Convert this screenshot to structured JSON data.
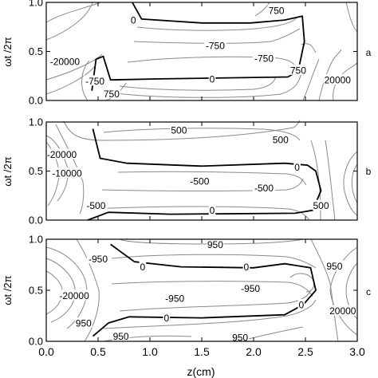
{
  "figure": {
    "xlabel": "z(cm)",
    "ylabel": "ωt /2π",
    "x_ticks": [
      "0.0",
      "0.5",
      "1.0",
      "1.5",
      "2.0",
      "2.5",
      "3.0"
    ],
    "y_ticks": [
      "0.0",
      "0.5",
      "1.0"
    ]
  },
  "chart_data": [
    {
      "type": "contour",
      "panel_label": "a",
      "xlabel": "",
      "ylabel": "ωt /2π",
      "xlim": [
        0,
        3
      ],
      "ylim": [
        0,
        1
      ],
      "grid": false,
      "levels_labeled": [
        "-20000",
        "-750",
        "0",
        "750",
        "20000"
      ],
      "contour_labels": [
        {
          "text": "0",
          "x": 0.84,
          "y": 0.82
        },
        {
          "text": "750",
          "x": 2.22,
          "y": 0.92
        },
        {
          "text": "-20000",
          "x": 0.18,
          "y": 0.4
        },
        {
          "text": "-750",
          "x": 1.63,
          "y": 0.56
        },
        {
          "text": "-750",
          "x": 2.1,
          "y": 0.43
        },
        {
          "text": "0",
          "x": 1.6,
          "y": 0.22
        },
        {
          "text": "750",
          "x": 2.43,
          "y": 0.31
        },
        {
          "text": "20000",
          "x": 2.81,
          "y": 0.21
        },
        {
          "text": "750",
          "x": 0.63,
          "y": 0.07
        },
        {
          "text": "-750",
          "x": 0.47,
          "y": 0.2
        }
      ],
      "zero_contour": [
        [
          0.83,
          1.0
        ],
        [
          0.92,
          0.83
        ],
        [
          1.5,
          0.79
        ],
        [
          1.97,
          0.79
        ],
        [
          2.3,
          0.82
        ],
        [
          2.47,
          0.86
        ],
        [
          2.49,
          0.6
        ],
        [
          2.43,
          0.3
        ],
        [
          2.33,
          0.24
        ],
        [
          1.1,
          0.22
        ],
        [
          0.62,
          0.21
        ],
        [
          0.55,
          0.45
        ],
        [
          0.48,
          0.42
        ],
        [
          0.44,
          0.1
        ]
      ]
    },
    {
      "type": "contour",
      "panel_label": "b",
      "xlabel": "",
      "ylabel": "ωt /2π",
      "xlim": [
        0,
        3
      ],
      "ylim": [
        0,
        1
      ],
      "grid": false,
      "levels_labeled": [
        "-20000",
        "-10000",
        "-500",
        "0",
        "500"
      ],
      "contour_labels": [
        {
          "text": "500",
          "x": 1.28,
          "y": 0.92
        },
        {
          "text": "500",
          "x": 2.26,
          "y": 0.82
        },
        {
          "text": "-20000",
          "x": 0.15,
          "y": 0.67
        },
        {
          "text": "-10000",
          "x": 0.2,
          "y": 0.48
        },
        {
          "text": "0",
          "x": 2.42,
          "y": 0.54
        },
        {
          "text": "-500",
          "x": 1.48,
          "y": 0.4
        },
        {
          "text": "-500",
          "x": 2.1,
          "y": 0.33
        },
        {
          "text": "-500",
          "x": 0.48,
          "y": 0.15
        },
        {
          "text": "0",
          "x": 1.6,
          "y": 0.1
        },
        {
          "text": "500",
          "x": 2.65,
          "y": 0.15
        }
      ],
      "zero_contour": [
        [
          0.45,
          0.93
        ],
        [
          0.52,
          0.63
        ],
        [
          0.78,
          0.58
        ],
        [
          1.5,
          0.55
        ],
        [
          2.3,
          0.58
        ],
        [
          2.52,
          0.56
        ],
        [
          2.6,
          0.5
        ],
        [
          2.65,
          0.3
        ],
        [
          2.57,
          0.1
        ],
        [
          2.4,
          0.07
        ],
        [
          1.2,
          0.06
        ],
        [
          0.6,
          0.08
        ],
        [
          0.4,
          0.0
        ]
      ]
    },
    {
      "type": "contour",
      "panel_label": "c",
      "xlabel": "z(cm)",
      "ylabel": "ωt /2π",
      "xlim": [
        0,
        3
      ],
      "ylim": [
        0,
        1
      ],
      "grid": false,
      "levels_labeled": [
        "-20000",
        "-950",
        "0",
        "950",
        "20000"
      ],
      "contour_labels": [
        {
          "text": "950",
          "x": 1.63,
          "y": 0.95
        },
        {
          "text": "-950",
          "x": 0.5,
          "y": 0.81
        },
        {
          "text": "0",
          "x": 0.93,
          "y": 0.73
        },
        {
          "text": "0",
          "x": 1.93,
          "y": 0.73
        },
        {
          "text": "950",
          "x": 2.78,
          "y": 0.74
        },
        {
          "text": "-20000",
          "x": 0.27,
          "y": 0.45
        },
        {
          "text": "-950",
          "x": 1.97,
          "y": 0.52
        },
        {
          "text": "-950",
          "x": 1.24,
          "y": 0.42
        },
        {
          "text": "0",
          "x": 2.46,
          "y": 0.36
        },
        {
          "text": "20000",
          "x": 2.86,
          "y": 0.3
        },
        {
          "text": "950",
          "x": 0.36,
          "y": 0.18
        },
        {
          "text": "0",
          "x": 1.16,
          "y": 0.23
        },
        {
          "text": "950",
          "x": 0.72,
          "y": 0.05
        },
        {
          "text": "950",
          "x": 1.87,
          "y": 0.04
        }
      ],
      "zero_contour": [
        [
          0.62,
          0.95
        ],
        [
          0.85,
          0.78
        ],
        [
          1.3,
          0.73
        ],
        [
          2.0,
          0.72
        ],
        [
          2.3,
          0.76
        ],
        [
          2.55,
          0.72
        ],
        [
          2.6,
          0.5
        ],
        [
          2.48,
          0.36
        ],
        [
          2.3,
          0.26
        ],
        [
          1.5,
          0.23
        ],
        [
          0.8,
          0.24
        ],
        [
          0.6,
          0.18
        ],
        [
          0.45,
          0.05
        ]
      ]
    }
  ]
}
